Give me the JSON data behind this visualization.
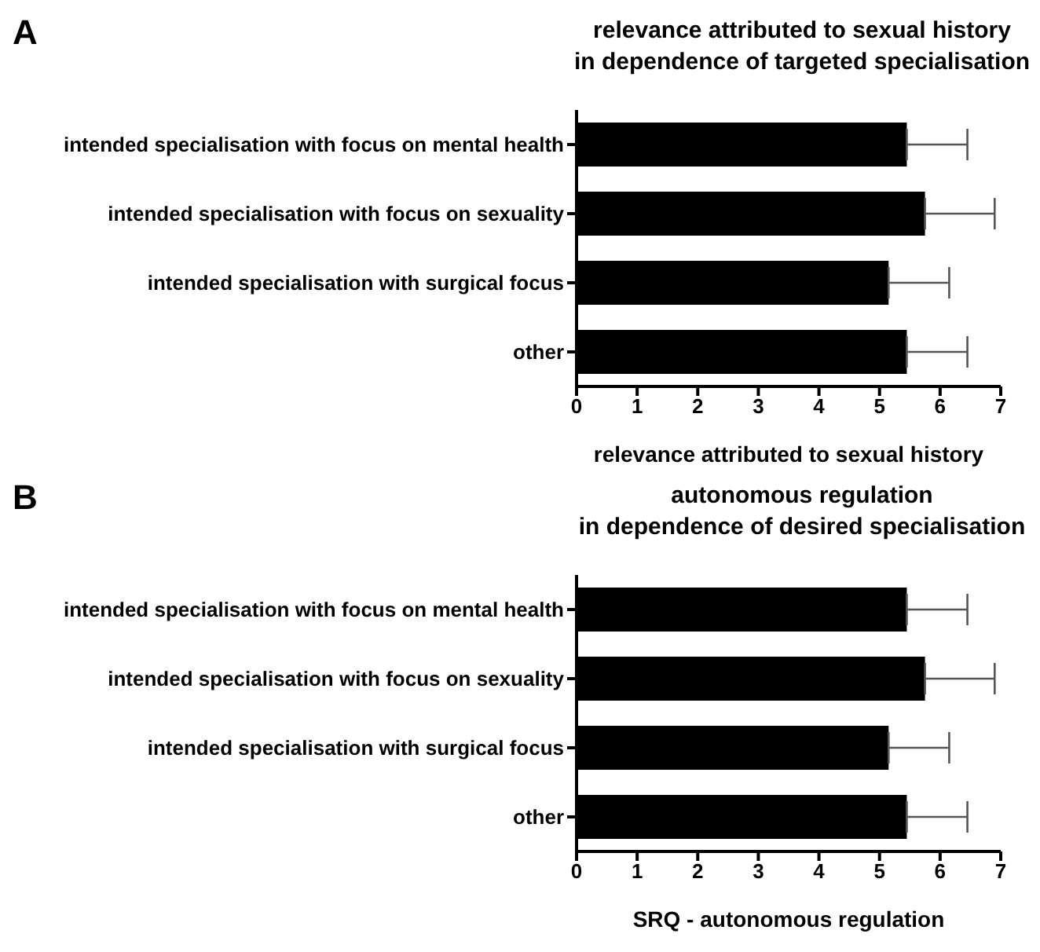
{
  "chart_data": [
    {
      "type": "bar",
      "orientation": "horizontal",
      "title": "relevance attributed to sexual history\nin dependence of targeted specialisation",
      "xlabel": "relevance attributed to sexual history",
      "annotations": [
        "A"
      ],
      "categories": [
        "intended specialisation with focus on mental health",
        "intended specialisation with focus on sexuality",
        "intended specialisation with surgical focus",
        "other"
      ],
      "values": [
        5.45,
        5.75,
        5.15,
        5.45
      ],
      "errors": [
        [
          5.45,
          6.45
        ],
        [
          5.75,
          6.9
        ],
        [
          5.15,
          6.15
        ],
        [
          5.45,
          6.45
        ]
      ],
      "color": "#000000",
      "xlim": [
        0,
        7
      ],
      "xticks": [
        0,
        1,
        2,
        3,
        4,
        5,
        6,
        7
      ]
    },
    {
      "type": "bar",
      "orientation": "horizontal",
      "title": "autonomous regulation\nin dependence of desired specialisation",
      "xlabel": "SRQ - autonomous regulation",
      "annotations": [
        "B"
      ],
      "categories": [
        "intended specialisation with focus on mental health",
        "intended specialisation with focus on sexuality",
        "intended specialisation with surgical focus",
        "other"
      ],
      "values": [
        5.45,
        5.75,
        5.15,
        5.45
      ],
      "errors": [
        [
          5.45,
          6.45
        ],
        [
          5.75,
          6.9
        ],
        [
          5.15,
          6.15
        ],
        [
          5.45,
          6.45
        ]
      ],
      "color": "#000000",
      "xlim": [
        0,
        7
      ],
      "xticks": [
        0,
        1,
        2,
        3,
        4,
        5,
        6,
        7
      ]
    }
  ]
}
